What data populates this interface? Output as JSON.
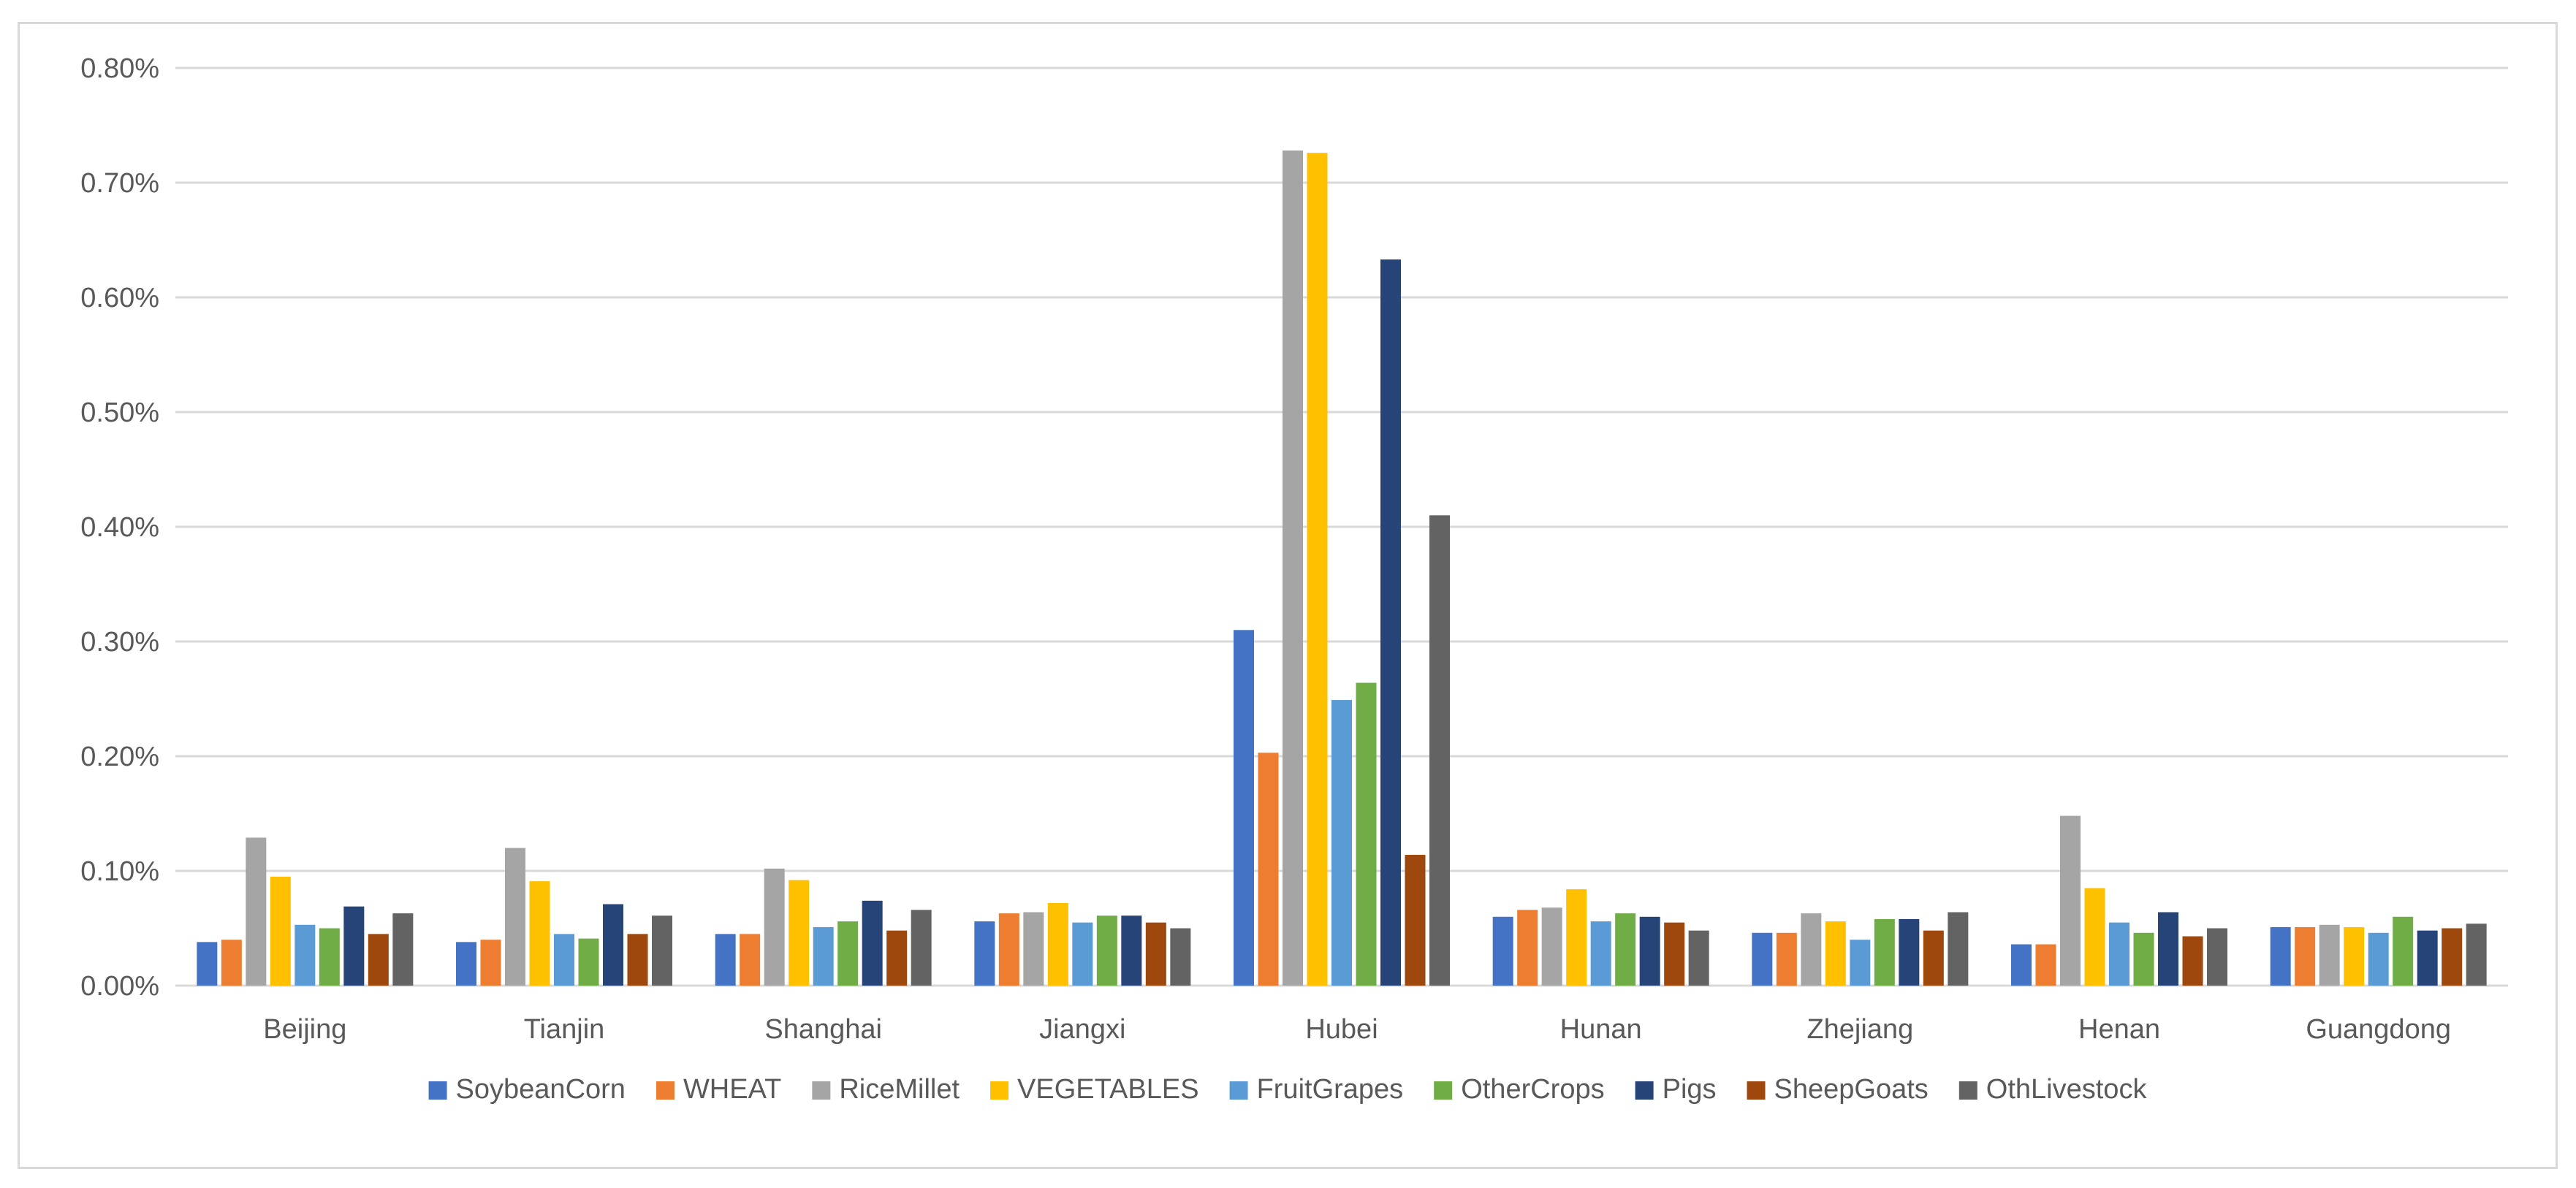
{
  "chart_data": {
    "type": "bar",
    "categories": [
      "Beijing",
      "Tianjin",
      "Shanghai",
      "Jiangxi",
      "Hubei",
      "Hunan",
      "Zhejiang",
      "Henan",
      "Guangdong"
    ],
    "series": [
      {
        "name": "SoybeanCorn",
        "color": "#4472C4",
        "values": [
          0.038,
          0.038,
          0.045,
          0.056,
          0.31,
          0.06,
          0.046,
          0.036,
          0.051
        ]
      },
      {
        "name": "WHEAT",
        "color": "#ED7D31",
        "values": [
          0.04,
          0.04,
          0.045,
          0.063,
          0.203,
          0.066,
          0.046,
          0.036,
          0.051
        ]
      },
      {
        "name": "RiceMillet",
        "color": "#A5A5A5",
        "values": [
          0.129,
          0.12,
          0.102,
          0.064,
          0.728,
          0.068,
          0.063,
          0.148,
          0.053
        ]
      },
      {
        "name": "VEGETABLES",
        "color": "#FFC000",
        "values": [
          0.095,
          0.091,
          0.092,
          0.072,
          0.726,
          0.084,
          0.056,
          0.085,
          0.051
        ]
      },
      {
        "name": "FruitGrapes",
        "color": "#5B9BD5",
        "values": [
          0.053,
          0.045,
          0.051,
          0.055,
          0.249,
          0.056,
          0.04,
          0.055,
          0.046
        ]
      },
      {
        "name": "OtherCrops",
        "color": "#70AD47",
        "values": [
          0.05,
          0.041,
          0.056,
          0.061,
          0.264,
          0.063,
          0.058,
          0.046,
          0.06
        ]
      },
      {
        "name": "Pigs",
        "color": "#264478",
        "values": [
          0.069,
          0.071,
          0.074,
          0.061,
          0.633,
          0.06,
          0.058,
          0.064,
          0.048
        ]
      },
      {
        "name": "SheepGoats",
        "color": "#9E480E",
        "values": [
          0.045,
          0.045,
          0.048,
          0.055,
          0.114,
          0.055,
          0.048,
          0.043,
          0.05
        ]
      },
      {
        "name": "OthLivestock",
        "color": "#636363",
        "values": [
          0.063,
          0.061,
          0.066,
          0.05,
          0.41,
          0.048,
          0.064,
          0.05,
          0.054
        ]
      }
    ],
    "y_ticks": [
      "0.00%",
      "0.10%",
      "0.20%",
      "0.30%",
      "0.40%",
      "0.50%",
      "0.60%",
      "0.70%",
      "0.80%"
    ],
    "ylim": [
      0,
      0.8
    ],
    "grid": true,
    "legend": "bottom",
    "title": "",
    "xlabel": "",
    "ylabel": ""
  }
}
